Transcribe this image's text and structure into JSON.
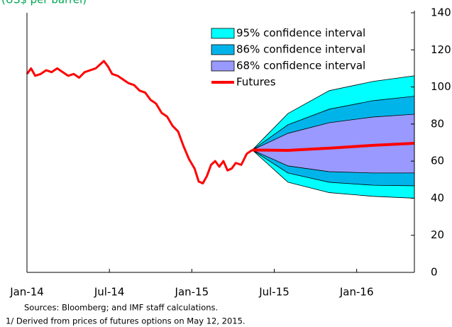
{
  "chart_data": {
    "type": "line",
    "subtitle": "(US$ per barrel)",
    "xlim": [
      0,
      28.2
    ],
    "xticks": [
      {
        "value": 0,
        "label": "Jan-14"
      },
      {
        "value": 6,
        "label": "Jul-14"
      },
      {
        "value": 12,
        "label": "Jan-15"
      },
      {
        "value": 18,
        "label": "Jul-15"
      },
      {
        "value": 24,
        "label": "Jan-16"
      }
    ],
    "ylim": [
      0,
      140
    ],
    "yticks": [
      0,
      20,
      40,
      60,
      80,
      100,
      120,
      140
    ],
    "bands": [
      {
        "name": "95% confidence interval",
        "color": "#00ffff",
        "x": [
          16.4,
          19,
          22,
          25.2,
          28.2
        ],
        "upper": [
          66,
          85.7,
          98,
          103,
          106
        ],
        "lower": [
          66,
          48.6,
          43,
          41,
          40
        ]
      },
      {
        "name": "86% confidence interval",
        "color": "#00b4ea",
        "x": [
          16.4,
          19,
          22,
          25.2,
          28.2
        ],
        "upper": [
          66,
          79.6,
          88,
          92.6,
          95
        ],
        "lower": [
          66,
          53.6,
          48.6,
          47,
          46.7
        ]
      },
      {
        "name": "68% confidence interval",
        "color": "#9999ff",
        "x": [
          16.4,
          19,
          22,
          25.2,
          28.2
        ],
        "upper": [
          66,
          75,
          80.7,
          83.8,
          85.3
        ],
        "lower": [
          66,
          57.4,
          54.3,
          53.6,
          53.6
        ]
      }
    ],
    "series": [
      {
        "color": "#ff0000",
        "x": [
          0,
          0.3,
          0.6,
          1,
          1.4,
          1.8,
          2.2,
          2.6,
          3,
          3.4,
          3.8,
          4.2,
          4.6,
          5,
          5.3,
          5.6,
          5.9,
          6.2,
          6.6,
          7,
          7.4,
          7.8,
          8.2,
          8.6,
          9,
          9.4,
          9.8,
          10.2,
          10.6,
          11,
          11.4,
          11.8,
          12.2,
          12.5,
          12.8,
          13.1,
          13.4,
          13.7,
          14,
          14.3,
          14.6,
          14.9,
          15.2,
          15.6,
          16,
          16.4
        ],
        "values": [
          107,
          110,
          106,
          107,
          109,
          108,
          110,
          108,
          106,
          107,
          105,
          108,
          109,
          110,
          112,
          114,
          111,
          107,
          106,
          104,
          102,
          101,
          98,
          97,
          93,
          91,
          86,
          84,
          79,
          76,
          68,
          61,
          56,
          49,
          48,
          52,
          58,
          60,
          57,
          60,
          55,
          56,
          59,
          58,
          64,
          66
        ]
      },
      {
        "name": "Futures",
        "color": "#ff0000",
        "x": [
          16.4,
          19,
          22,
          25.2,
          28.2
        ],
        "values": [
          66,
          65.8,
          67,
          68.5,
          69.6
        ]
      }
    ],
    "notes": [
      "Sources: Bloomberg; and IMF staff calculations.",
      "1/ Derived from prices of futures options on  May 12, 2015."
    ]
  }
}
